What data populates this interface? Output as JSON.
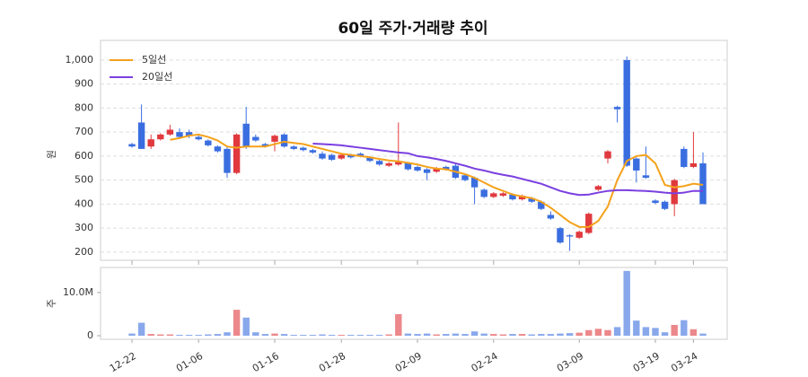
{
  "chart_data": {
    "type": "candlestick",
    "title": "60일 주가·거래량 추이",
    "ylabel": "원",
    "categories": [
      "12-22",
      null,
      null,
      null,
      null,
      null,
      null,
      "01-06",
      null,
      null,
      null,
      null,
      null,
      null,
      null,
      "01-16",
      null,
      null,
      null,
      null,
      null,
      null,
      "01-28",
      null,
      null,
      null,
      null,
      null,
      null,
      null,
      "02-09",
      null,
      null,
      null,
      null,
      null,
      null,
      null,
      "02-24",
      null,
      null,
      null,
      null,
      null,
      null,
      null,
      null,
      "03-09",
      null,
      null,
      null,
      null,
      null,
      null,
      null,
      "03-19",
      null,
      null,
      null,
      "03-24",
      null
    ],
    "open": [
      650,
      740,
      640,
      670,
      690,
      700,
      700,
      680,
      665,
      640,
      630,
      530,
      735,
      680,
      650,
      660,
      690,
      640,
      635,
      625,
      610,
      605,
      590,
      605,
      610,
      595,
      580,
      560,
      565,
      570,
      555,
      545,
      535,
      555,
      560,
      520,
      510,
      460,
      430,
      435,
      440,
      420,
      425,
      410,
      355,
      300,
      270,
      260,
      280,
      460,
      590,
      805,
      1000,
      590,
      520,
      415,
      410,
      400,
      630,
      555,
      570
    ],
    "high": [
      655,
      815,
      690,
      695,
      730,
      715,
      710,
      690,
      670,
      645,
      640,
      695,
      805,
      690,
      655,
      690,
      695,
      645,
      640,
      630,
      620,
      610,
      610,
      610,
      615,
      600,
      585,
      575,
      740,
      575,
      560,
      550,
      555,
      560,
      570,
      525,
      515,
      465,
      450,
      450,
      445,
      440,
      430,
      415,
      370,
      305,
      275,
      290,
      365,
      480,
      625,
      810,
      1015,
      595,
      640,
      420,
      415,
      505,
      640,
      700,
      615
    ],
    "low": [
      635,
      630,
      630,
      665,
      685,
      675,
      675,
      665,
      640,
      615,
      510,
      525,
      630,
      660,
      635,
      620,
      635,
      625,
      620,
      610,
      585,
      580,
      585,
      590,
      595,
      575,
      560,
      555,
      560,
      540,
      535,
      500,
      530,
      540,
      505,
      495,
      400,
      425,
      425,
      430,
      415,
      415,
      405,
      375,
      335,
      235,
      205,
      255,
      275,
      455,
      570,
      740,
      555,
      490,
      505,
      400,
      375,
      350,
      550,
      550,
      400
    ],
    "close": [
      640,
      630,
      670,
      690,
      710,
      680,
      685,
      670,
      645,
      620,
      530,
      690,
      640,
      665,
      640,
      685,
      640,
      630,
      625,
      615,
      590,
      585,
      605,
      595,
      600,
      580,
      565,
      570,
      575,
      545,
      540,
      530,
      550,
      545,
      510,
      500,
      470,
      430,
      445,
      445,
      420,
      435,
      410,
      380,
      340,
      240,
      265,
      285,
      360,
      475,
      620,
      795,
      560,
      540,
      510,
      405,
      380,
      500,
      555,
      570,
      400
    ],
    "up_color": "#e0393e",
    "down_color": "#3a6ee0",
    "ylim": [
      166,
      1082
    ],
    "yticks": [
      200,
      300,
      400,
      500,
      600,
      700,
      800,
      900,
      {
        "value": 1000,
        "label": "1,000"
      }
    ],
    "grid": true,
    "legend": "upper left",
    "series": [
      {
        "name": "5일선",
        "color": "#f5a21b",
        "values": [
          null,
          null,
          null,
          null,
          668,
          675,
          685,
          690,
          680,
          665,
          640,
          635,
          640,
          640,
          640,
          650,
          660,
          655,
          650,
          640,
          630,
          620,
          610,
          605,
          600,
          595,
          588,
          582,
          578,
          572,
          565,
          555,
          548,
          545,
          535,
          525,
          510,
          490,
          470,
          455,
          440,
          432,
          425,
          410,
          385,
          355,
          325,
          305,
          305,
          330,
          390,
          500,
          580,
          600,
          605,
          570,
          480,
          470,
          475,
          485,
          480
        ]
      },
      {
        "name": "20일선",
        "color": "#7a3fe0",
        "values": [
          null,
          null,
          null,
          null,
          null,
          null,
          null,
          null,
          null,
          null,
          null,
          null,
          null,
          null,
          null,
          null,
          null,
          null,
          null,
          652,
          650,
          648,
          645,
          640,
          635,
          630,
          625,
          620,
          615,
          612,
          600,
          595,
          588,
          580,
          570,
          560,
          548,
          540,
          530,
          522,
          515,
          505,
          495,
          485,
          470,
          455,
          445,
          438,
          440,
          448,
          455,
          458,
          458,
          456,
          455,
          452,
          448,
          445,
          448,
          455,
          455
        ]
      }
    ],
    "volume": {
      "ylabel": "주",
      "values": [
        500000,
        3000000,
        400000,
        300000,
        300000,
        200000,
        200000,
        200000,
        300000,
        400000,
        800000,
        6000000,
        4200000,
        800000,
        400000,
        500000,
        400000,
        200000,
        200000,
        200000,
        300000,
        200000,
        200000,
        200000,
        200000,
        200000,
        200000,
        300000,
        5000000,
        500000,
        400000,
        500000,
        300000,
        400000,
        500000,
        400000,
        1000000,
        500000,
        400000,
        300000,
        400000,
        400000,
        300000,
        400000,
        400000,
        500000,
        600000,
        700000,
        1300000,
        1600000,
        1300000,
        2000000,
        15000000,
        3500000,
        2000000,
        1800000,
        800000,
        2500000,
        3600000,
        1500000,
        500000
      ],
      "ylim": [
        0,
        15800000
      ],
      "yticks": [
        0,
        {
          "value": 10000000,
          "label": "10.0M"
        }
      ]
    }
  }
}
